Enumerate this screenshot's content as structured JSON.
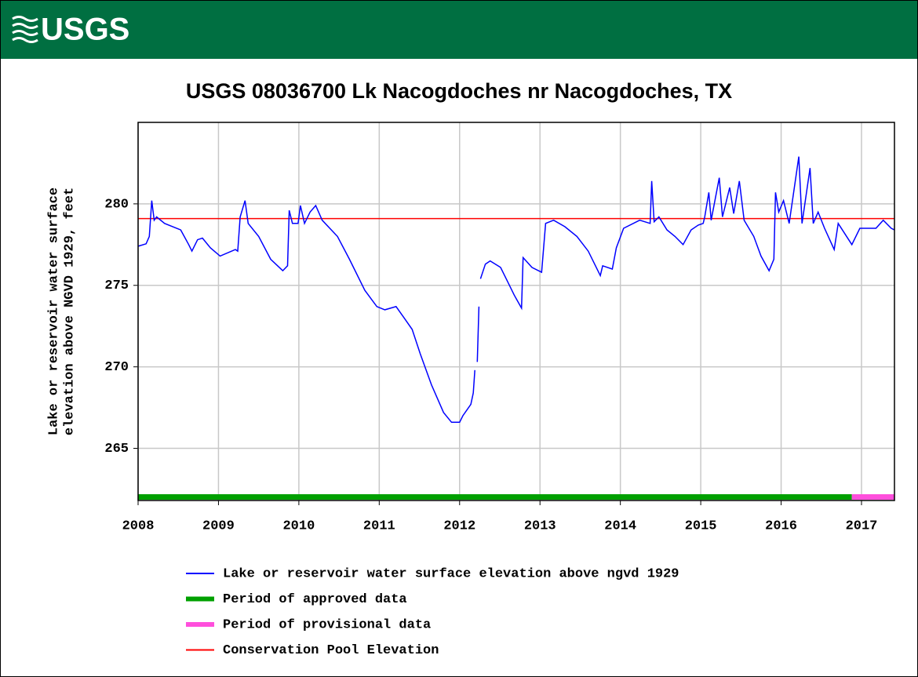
{
  "header": {
    "logo": "USGS"
  },
  "chart_data": {
    "type": "line",
    "title": "USGS 08036700 Lk Nacogdoches nr Nacogdoches, TX",
    "ylabel": [
      "Lake or reservoir water surface",
      "elevation above NGVD 1929, feet"
    ],
    "xlim": [
      2008,
      2017.41
    ],
    "xticks": [
      2008,
      2009,
      2010,
      2011,
      2012,
      2013,
      2014,
      2015,
      2016,
      2017
    ],
    "ylim": [
      261.8,
      285
    ],
    "yticks": [
      265,
      270,
      275,
      280
    ],
    "grid": true,
    "series": [
      {
        "name": "Lake or reservoir water surface elevation above ngvd 1929",
        "color": "#0000ff",
        "x": [
          2008.0,
          2008.1,
          2008.14,
          2008.17,
          2008.2,
          2008.23,
          2008.33,
          2008.53,
          2008.63,
          2008.67,
          2008.74,
          2008.8,
          2008.9,
          2009.02,
          2009.21,
          2009.24,
          2009.27,
          2009.33,
          2009.37,
          2009.5,
          2009.65,
          2009.8,
          2009.86,
          2009.88,
          2009.92,
          2009.99,
          2010.02,
          2010.07,
          2010.14,
          2010.21,
          2010.29,
          2010.48,
          2010.63,
          2010.82,
          2010.97,
          2011.07,
          2011.21,
          2011.31,
          2011.41,
          2011.51,
          2011.65,
          2011.8,
          2011.9,
          2012.0,
          2012.04,
          2012.14,
          2012.17,
          2012.19,
          2012.205,
          2012.22,
          2012.24,
          2012.25,
          2012.26,
          2012.32,
          2012.38,
          2012.51,
          2012.58,
          2012.68,
          2012.77,
          2012.79,
          2012.9,
          2013.02,
          2013.07,
          2013.17,
          2013.31,
          2013.46,
          2013.6,
          2013.75,
          2013.78,
          2013.9,
          2013.95,
          2014.04,
          2014.24,
          2014.37,
          2014.39,
          2014.42,
          2014.48,
          2014.58,
          2014.68,
          2014.78,
          2014.88,
          2014.97,
          2015.03,
          2015.05,
          2015.1,
          2015.13,
          2015.23,
          2015.27,
          2015.36,
          2015.41,
          2015.48,
          2015.54,
          2015.66,
          2015.75,
          2015.85,
          2015.91,
          2015.93,
          2015.97,
          2016.03,
          2016.1,
          2016.22,
          2016.26,
          2016.36,
          2016.4,
          2016.46,
          2016.54,
          2016.66,
          2016.71,
          2016.88,
          2016.98,
          2017.18,
          2017.27,
          2017.37,
          2017.41
        ],
        "values": [
          277.4,
          277.55,
          278.0,
          280.2,
          279.0,
          279.2,
          278.8,
          278.4,
          277.5,
          277.1,
          277.8,
          277.9,
          277.3,
          276.8,
          277.2,
          277.1,
          279.2,
          280.2,
          278.8,
          278.0,
          276.6,
          275.9,
          276.2,
          279.6,
          278.8,
          278.8,
          279.9,
          278.8,
          279.5,
          279.9,
          279.0,
          278.0,
          276.6,
          274.7,
          273.7,
          273.5,
          273.7,
          273.0,
          272.3,
          270.8,
          268.9,
          267.2,
          266.6,
          266.6,
          267.0,
          267.7,
          268.4,
          269.8,
          null,
          270.3,
          273.7,
          null,
          275.4,
          276.3,
          276.5,
          276.1,
          275.4,
          274.4,
          273.6,
          276.7,
          276.1,
          275.8,
          278.8,
          279.0,
          278.6,
          278.0,
          277.1,
          275.6,
          276.2,
          276.0,
          277.3,
          278.5,
          279.0,
          278.8,
          281.4,
          278.9,
          279.2,
          278.4,
          278.0,
          277.5,
          278.4,
          278.7,
          278.8,
          279.2,
          280.7,
          279.0,
          281.6,
          279.2,
          281.0,
          279.4,
          281.4,
          279.0,
          278.0,
          276.8,
          275.9,
          276.6,
          280.7,
          279.5,
          280.2,
          278.8,
          282.9,
          278.8,
          282.2,
          278.8,
          279.5,
          278.5,
          277.2,
          278.8,
          277.5,
          278.5,
          278.5,
          279.0,
          278.5,
          278.4
        ]
      }
    ],
    "reference_line": {
      "name": "Conservation Pool Elevation",
      "value": 279.1,
      "color": "#ff0000"
    },
    "periods": [
      {
        "name": "Period of approved data",
        "color": "#00a000",
        "start": 2008,
        "end": 2016.88
      },
      {
        "name": "Period of provisional data",
        "color": "#ff4fdc",
        "start": 2016.88,
        "end": 2017.41
      }
    ]
  }
}
